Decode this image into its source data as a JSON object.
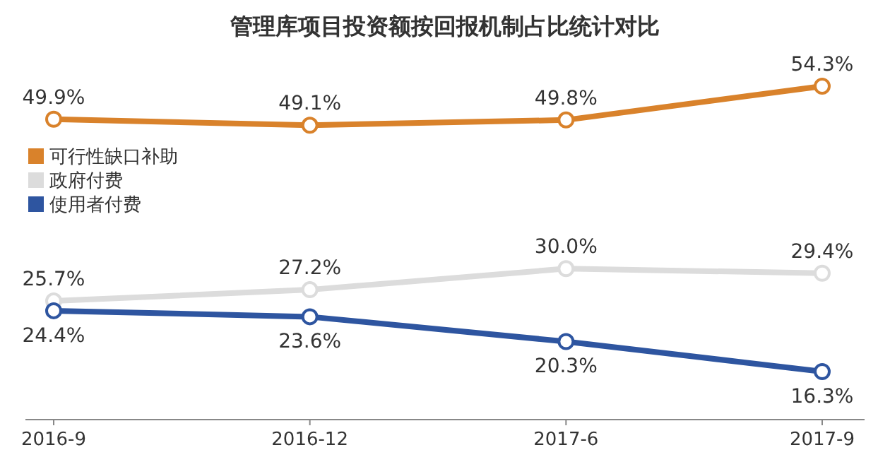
{
  "chart_data": {
    "type": "line",
    "title": "管理库项目投资额按回报机制占比统计对比",
    "categories": [
      "2016-9",
      "2016-12",
      "2017-6",
      "2017-9"
    ],
    "series": [
      {
        "name": "可行性缺口补助",
        "color": "#d9822b",
        "values": [
          49.9,
          49.1,
          49.8,
          54.3
        ],
        "value_labels": [
          "49.9%",
          "49.1%",
          "49.8%",
          "54.3%"
        ]
      },
      {
        "name": "政府付费",
        "color": "#dcdcdc",
        "values": [
          25.7,
          27.2,
          30.0,
          29.4
        ],
        "value_labels": [
          "25.7%",
          "27.2%",
          "30.0%",
          "29.4%"
        ]
      },
      {
        "name": "使用者付费",
        "color": "#2e55a0",
        "values": [
          24.4,
          23.6,
          20.3,
          16.3
        ],
        "value_labels": [
          "24.4%",
          "23.6%",
          "20.3%",
          "16.3%"
        ]
      }
    ],
    "marker": "circle",
    "legend": "left",
    "grid": false
  }
}
